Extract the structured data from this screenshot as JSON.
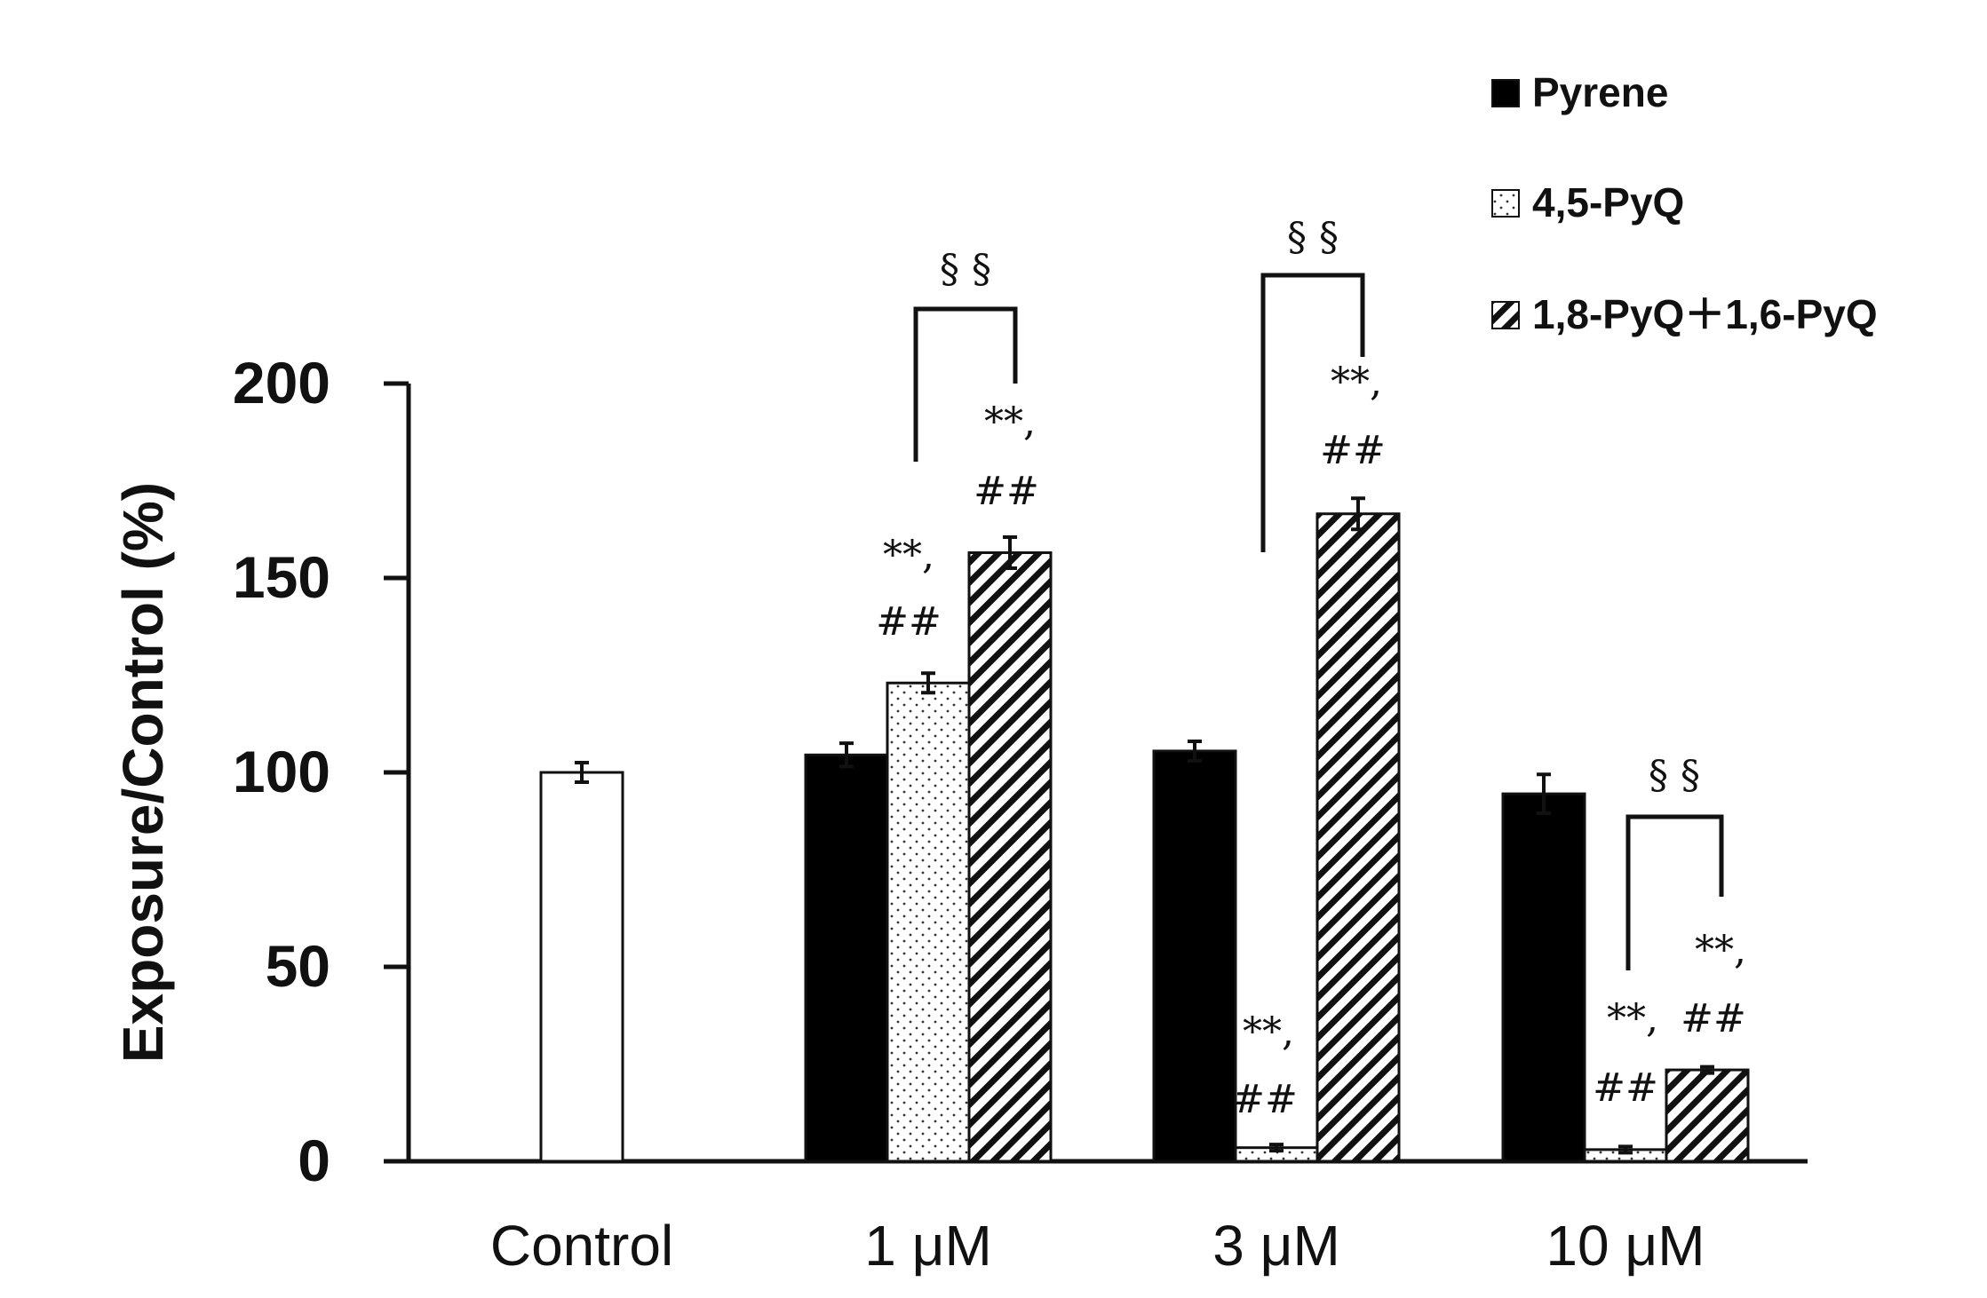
{
  "chart_data": {
    "type": "bar",
    "ylabel": "Exposure/Control (%)",
    "ylim": [
      0,
      200
    ],
    "yticks": [
      "0",
      "50",
      "100",
      "150",
      "200"
    ],
    "categories": [
      "Control",
      "1 μM",
      "3 μM",
      "10 μM"
    ],
    "control": {
      "value": 100,
      "error": 2.5
    },
    "series": [
      {
        "name": "Pyrene",
        "pattern": "solid",
        "values": [
          null,
          104.5,
          105.5,
          94.5
        ],
        "errors": [
          null,
          3,
          2.5,
          5
        ]
      },
      {
        "name": "4,5-PyQ",
        "pattern": "dots",
        "values": [
          null,
          123,
          3.5,
          3
        ],
        "errors": [
          null,
          2.5,
          0.8,
          0.8
        ]
      },
      {
        "name": "1,8-PyQ＋1,6-PyQ",
        "pattern": "hatch",
        "values": [
          null,
          156.5,
          166.5,
          23.5
        ],
        "errors": [
          null,
          4,
          4,
          0.8
        ]
      }
    ],
    "legend_position": "top-right",
    "annotations": {
      "sig_line1": "**,",
      "sig_line2": "##",
      "bracket_label": "§ §"
    }
  },
  "colors": {
    "solid": "#000000",
    "outline": "#111111",
    "background": "#ffffff"
  }
}
